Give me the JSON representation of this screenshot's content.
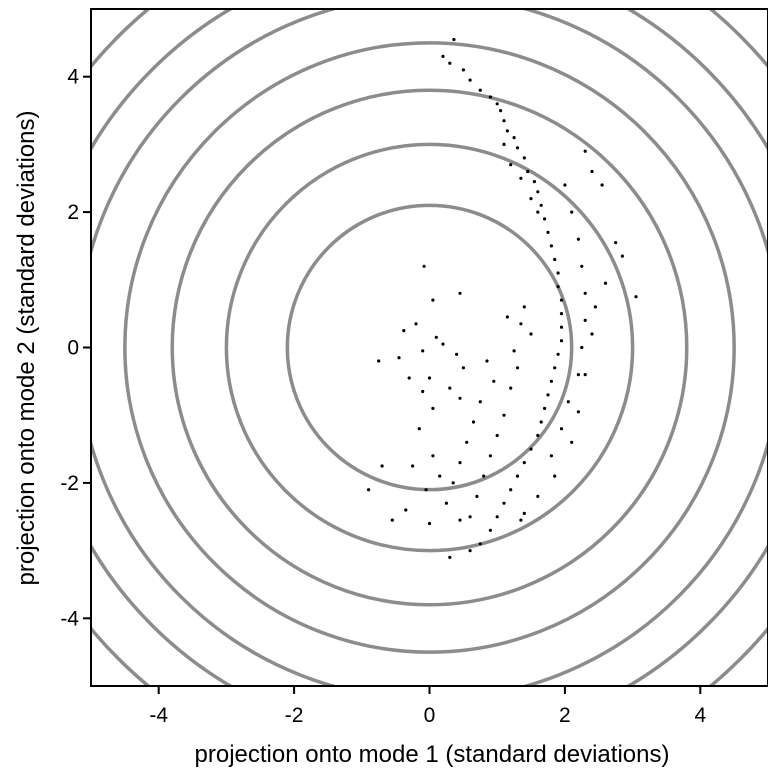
{
  "chart_data": {
    "type": "scatter",
    "title": "",
    "xlabel": "projection onto mode 1 (standard deviations)",
    "ylabel": "projection onto mode 2 (standard deviations)",
    "xlim": [
      -5,
      5
    ],
    "ylim": [
      -5,
      5
    ],
    "x_ticks": [
      -4,
      -2,
      0,
      2,
      4
    ],
    "y_ticks": [
      -4,
      -2,
      0,
      2,
      4
    ],
    "grid": false,
    "legend": "none",
    "contours": {
      "shape": "circle",
      "center": [
        0,
        0
      ],
      "radii": [
        2.1,
        3.0,
        3.8,
        4.5,
        5.2,
        5.8,
        6.5
      ],
      "color": "#8c8c8c"
    },
    "point_color": "#000000",
    "points": [
      [
        0.36,
        4.55
      ],
      [
        0.2,
        4.3
      ],
      [
        0.3,
        4.2
      ],
      [
        0.5,
        4.1
      ],
      [
        0.6,
        3.95
      ],
      [
        0.75,
        3.8
      ],
      [
        0.9,
        3.7
      ],
      [
        1.0,
        3.6
      ],
      [
        1.05,
        3.5
      ],
      [
        1.1,
        3.35
      ],
      [
        1.15,
        3.2
      ],
      [
        1.25,
        3.1
      ],
      [
        1.3,
        2.95
      ],
      [
        1.4,
        2.8
      ],
      [
        1.45,
        2.6
      ],
      [
        1.55,
        2.45
      ],
      [
        1.6,
        2.3
      ],
      [
        1.65,
        2.1
      ],
      [
        1.7,
        1.9
      ],
      [
        1.75,
        1.7
      ],
      [
        1.8,
        1.5
      ],
      [
        1.85,
        1.3
      ],
      [
        1.9,
        1.1
      ],
      [
        1.9,
        0.9
      ],
      [
        1.95,
        0.7
      ],
      [
        1.95,
        0.5
      ],
      [
        1.95,
        0.3
      ],
      [
        1.95,
        0.1
      ],
      [
        1.9,
        -0.1
      ],
      [
        1.85,
        -0.3
      ],
      [
        1.8,
        -0.5
      ],
      [
        1.75,
        -0.7
      ],
      [
        1.7,
        -0.9
      ],
      [
        1.65,
        -1.1
      ],
      [
        1.6,
        -1.3
      ],
      [
        1.5,
        -1.5
      ],
      [
        1.4,
        -1.7
      ],
      [
        1.3,
        -1.9
      ],
      [
        1.2,
        -2.1
      ],
      [
        1.1,
        -2.3
      ],
      [
        1.0,
        -2.5
      ],
      [
        0.9,
        -2.7
      ],
      [
        0.75,
        -2.9
      ],
      [
        0.6,
        -3.0
      ],
      [
        0.3,
        -3.1
      ],
      [
        2.3,
        2.9
      ],
      [
        2.4,
        2.6
      ],
      [
        2.55,
        2.4
      ],
      [
        2.75,
        1.55
      ],
      [
        2.85,
        1.35
      ],
      [
        3.05,
        0.75
      ],
      [
        2.6,
        0.95
      ],
      [
        2.45,
        0.6
      ],
      [
        2.4,
        0.2
      ],
      [
        2.3,
        -0.4
      ],
      [
        2.2,
        -0.95
      ],
      [
        2.1,
        -1.4
      ],
      [
        1.85,
        -1.9
      ],
      [
        1.6,
        -2.2
      ],
      [
        1.4,
        -2.45
      ],
      [
        1.35,
        -2.55
      ],
      [
        1.1,
        3.0
      ],
      [
        1.2,
        2.7
      ],
      [
        1.35,
        2.5
      ],
      [
        1.5,
        2.2
      ],
      [
        1.6,
        2.0
      ],
      [
        2.0,
        2.4
      ],
      [
        2.1,
        2.0
      ],
      [
        2.2,
        1.6
      ],
      [
        2.25,
        1.2
      ],
      [
        2.3,
        0.8
      ],
      [
        2.3,
        0.4
      ],
      [
        2.25,
        0.0
      ],
      [
        2.2,
        -0.4
      ],
      [
        2.05,
        -0.8
      ],
      [
        1.95,
        -1.2
      ],
      [
        1.8,
        -1.6
      ],
      [
        1.4,
        0.6
      ],
      [
        1.5,
        0.2
      ],
      [
        1.3,
        -0.3
      ],
      [
        1.2,
        -0.6
      ],
      [
        1.1,
        -1.0
      ],
      [
        1.0,
        -1.3
      ],
      [
        0.9,
        -1.6
      ],
      [
        0.8,
        -1.9
      ],
      [
        0.7,
        -2.2
      ],
      [
        0.6,
        -2.5
      ],
      [
        1.25,
        -0.05
      ],
      [
        1.35,
        0.35
      ],
      [
        1.15,
        0.45
      ],
      [
        0.95,
        -0.5
      ],
      [
        0.85,
        -0.2
      ],
      [
        0.75,
        -0.8
      ],
      [
        0.65,
        -1.1
      ],
      [
        0.55,
        -1.4
      ],
      [
        0.45,
        -1.7
      ],
      [
        0.35,
        -2.0
      ],
      [
        0.25,
        -2.3
      ],
      [
        0.05,
        0.7
      ],
      [
        0.45,
        0.8
      ],
      [
        0.1,
        0.15
      ],
      [
        0.2,
        0.05
      ],
      [
        0.4,
        -0.1
      ],
      [
        0.5,
        -0.3
      ],
      [
        0.3,
        -0.6
      ],
      [
        0.45,
        -0.75
      ],
      [
        0.0,
        -0.45
      ],
      [
        -0.1,
        -0.65
      ],
      [
        -0.3,
        -0.45
      ],
      [
        -0.45,
        -0.15
      ],
      [
        -0.75,
        -0.2
      ],
      [
        -0.38,
        0.25
      ],
      [
        -0.2,
        0.35
      ],
      [
        -0.1,
        -0.05
      ],
      [
        0.05,
        -0.9
      ],
      [
        -0.15,
        -1.2
      ],
      [
        0.05,
        -1.6
      ],
      [
        -0.25,
        -1.75
      ],
      [
        0.15,
        -1.9
      ],
      [
        -0.05,
        -2.1
      ],
      [
        -0.7,
        -1.75
      ],
      [
        -0.9,
        -2.1
      ],
      [
        -0.35,
        -2.4
      ],
      [
        -0.55,
        -2.55
      ],
      [
        0.0,
        -2.6
      ],
      [
        0.45,
        -2.55
      ],
      [
        -0.08,
        1.2
      ]
    ]
  }
}
